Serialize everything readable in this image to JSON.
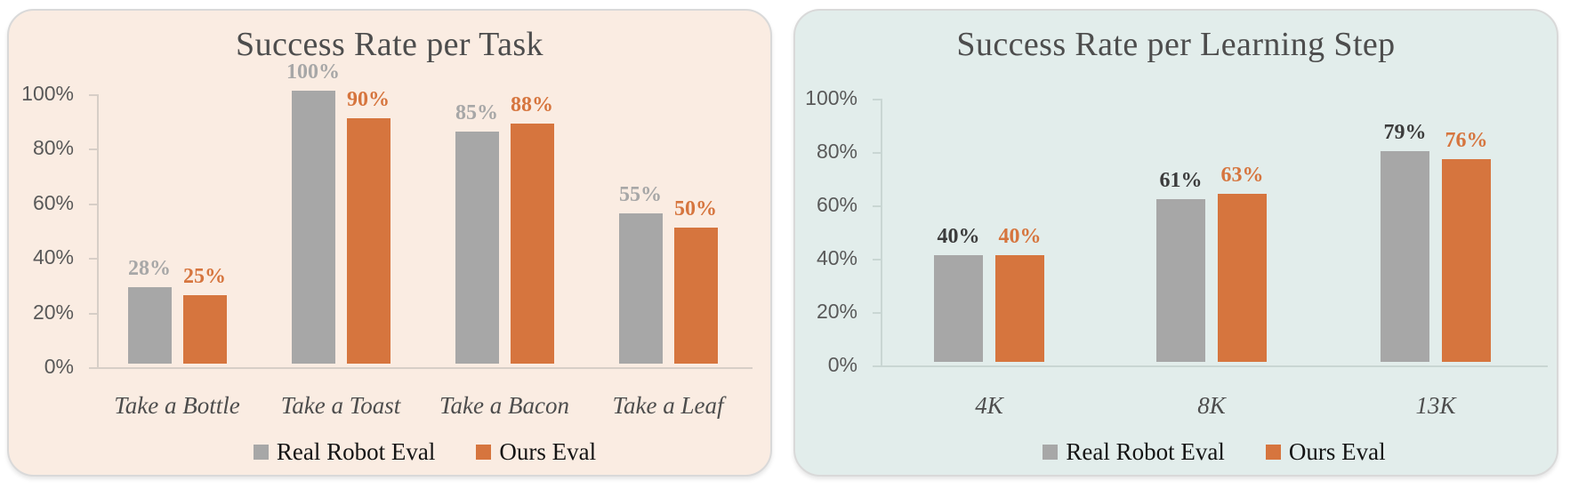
{
  "chart_data": [
    {
      "type": "bar",
      "title": "Success Rate per Task",
      "categories": [
        "Take a Bottle",
        "Take a Toast",
        "Take a Bacon",
        "Take a Leaf"
      ],
      "series": [
        {
          "name": "Real Robot Eval",
          "color": "#A7A7A7",
          "label_color": "#A7A7A7",
          "values": [
            28,
            100,
            85,
            55
          ],
          "labels": [
            "28%",
            "100%",
            "85%",
            "55%"
          ]
        },
        {
          "name": "Ours Eval",
          "color": "#D6753E",
          "label_color": "#D6753E",
          "values": [
            25,
            90,
            88,
            50
          ],
          "labels": [
            "25%",
            "90%",
            "88%",
            "50%"
          ]
        }
      ],
      "xlabel": "",
      "ylabel": "",
      "ylim": [
        0,
        100
      ],
      "y_tick_labels": [
        "100%",
        "80%",
        "60%",
        "40%",
        "20%",
        "0%"
      ],
      "grid": false,
      "legend_position": "bottom",
      "panel_bg": "#FAECE2"
    },
    {
      "type": "bar",
      "title": "Success Rate per Learning Step",
      "categories": [
        "4K",
        "8K",
        "13K"
      ],
      "series": [
        {
          "name": "Real Robot Eval",
          "color": "#A7A7A7",
          "label_color": "#3C3C3C",
          "values": [
            40,
            61,
            79
          ],
          "labels": [
            "40%",
            "61%",
            "79%"
          ]
        },
        {
          "name": "Ours Eval",
          "color": "#D6753E",
          "label_color": "#D6753E",
          "values": [
            40,
            63,
            76
          ],
          "labels": [
            "40%",
            "63%",
            "76%"
          ]
        }
      ],
      "xlabel": "",
      "ylabel": "",
      "ylim": [
        0,
        100
      ],
      "y_tick_labels": [
        "100%",
        "80%",
        "60%",
        "40%",
        "20%",
        "0%"
      ],
      "grid": false,
      "legend_position": "bottom",
      "panel_bg": "#E2EDEB"
    }
  ]
}
